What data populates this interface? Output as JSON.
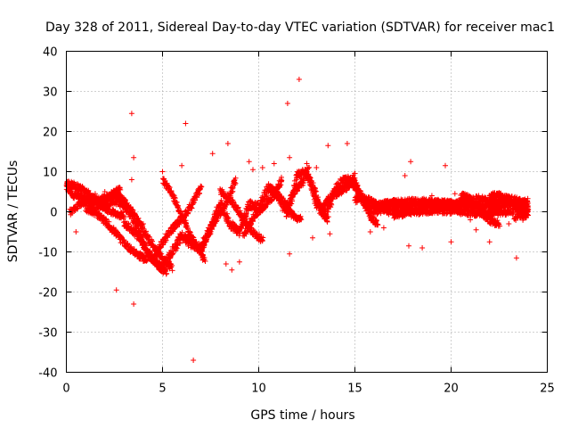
{
  "chart_data": {
    "type": "scatter",
    "title": "Day 328 of 2011, Sidereal Day-to-day VTEC variation (SDTVAR) for receiver mac1",
    "xlabel": "GPS time / hours",
    "ylabel": "SDTVAR / TECUs",
    "xlim": [
      0,
      25
    ],
    "ylim": [
      -40,
      40
    ],
    "xticks": [
      0,
      5,
      10,
      15,
      20,
      25
    ],
    "yticks": [
      -40,
      -30,
      -20,
      -10,
      0,
      10,
      20,
      30,
      40
    ],
    "grid": true,
    "marker": "+",
    "color": "#ff0000",
    "series": [
      {
        "name": "SDTVAR",
        "trend": {
          "x": [
            0,
            0.5,
            1,
            1.5,
            2,
            2.5,
            3,
            3.5,
            4,
            4.5,
            5,
            5.5,
            6,
            6.5,
            7,
            7.5,
            8,
            8.5,
            9,
            9.5,
            10,
            10.5,
            11,
            11.5,
            12,
            12.5,
            13,
            13.5,
            14,
            14.5,
            15,
            15.5,
            16,
            16.5,
            17,
            17.5,
            18,
            18.5,
            19,
            19.5,
            20,
            20.5,
            21,
            21.5,
            22,
            22.5,
            23,
            23.5,
            24
          ],
          "y": [
            6,
            4,
            3,
            1.5,
            2,
            3,
            2,
            -2,
            -8,
            -12,
            -14,
            -10,
            -6,
            -8,
            -9,
            -4,
            2,
            -3,
            -5,
            2,
            1,
            6,
            4,
            -1,
            9,
            10,
            2,
            -1,
            6,
            8,
            7,
            2,
            0,
            1,
            2,
            1,
            1.5,
            2,
            1.5,
            2,
            1.5,
            2,
            2.5,
            3,
            2,
            3,
            3,
            2.5,
            2
          ]
        },
        "bands": [
          {
            "x": [
              0.0,
              3.0
            ],
            "y_from": 7,
            "y_to": -1
          },
          {
            "x": [
              0.2,
              2.8
            ],
            "y_from": 0,
            "y_to": 6
          },
          {
            "x": [
              1.0,
              4.2
            ],
            "y_from": 1,
            "y_to": -12
          },
          {
            "x": [
              2.5,
              5.5
            ],
            "y_from": 5,
            "y_to": -14
          },
          {
            "x": [
              3.0,
              5.2
            ],
            "y_from": -3,
            "y_to": -15
          },
          {
            "x": [
              4.5,
              7.0
            ],
            "y_from": -12,
            "y_to": 6
          },
          {
            "x": [
              5.0,
              7.2
            ],
            "y_from": 8,
            "y_to": -12
          },
          {
            "x": [
              7.0,
              8.8
            ],
            "y_from": -10,
            "y_to": 8
          },
          {
            "x": [
              8.0,
              10.2
            ],
            "y_from": 5,
            "y_to": -7
          },
          {
            "x": [
              9.2,
              11.2
            ],
            "y_from": -6,
            "y_to": 8
          },
          {
            "x": [
              10.5,
              12.2
            ],
            "y_from": 6,
            "y_to": -2
          },
          {
            "x": [
              11.5,
              12.6
            ],
            "y_from": 1,
            "y_to": 11
          },
          {
            "x": [
              12.4,
              13.6
            ],
            "y_from": 10,
            "y_to": -2
          },
          {
            "x": [
              13.2,
              15.0
            ],
            "y_from": 0,
            "y_to": 9
          },
          {
            "x": [
              14.8,
              16.2
            ],
            "y_from": 7,
            "y_to": -3
          },
          {
            "x": [
              15.0,
              17.5
            ],
            "y_from": 3,
            "y_to": 0
          },
          {
            "x": [
              16.0,
              24.0
            ],
            "y_from": 1.5,
            "y_to": 2.5
          },
          {
            "x": [
              17.0,
              24.0
            ],
            "y_from": -1,
            "y_to": 1
          },
          {
            "x": [
              20.5,
              22.5
            ],
            "y_from": 4,
            "y_to": -3
          },
          {
            "x": [
              22.0,
              24.0
            ],
            "y_from": 4,
            "y_to": 1
          },
          {
            "x": [
              23.3,
              24.0
            ],
            "y_from": -2,
            "y_to": 0
          }
        ],
        "outliers": {
          "x": [
            3.4,
            3.5,
            3.4,
            2.6,
            3.5,
            6.2,
            6.6,
            8.4,
            8.6,
            9.0,
            9.7,
            11.5,
            11.6,
            12.1,
            11.6,
            13.6,
            13.7,
            14.6,
            17.6,
            17.9,
            19.7,
            20.2,
            22.0,
            23.4,
            7.6,
            8.3,
            10.8,
            0.5,
            12.5,
            12.8,
            16.5,
            21.3,
            17.8,
            20.0,
            4.0,
            5.0,
            15.8,
            19.0,
            22.8,
            6.0,
            9.5,
            10.2,
            1.5,
            2.0,
            23.0,
            18.5,
            21.0,
            13.0
          ],
          "y": [
            24.5,
            13.5,
            8,
            -19.5,
            -23,
            22,
            -37,
            17,
            -14.5,
            -12.5,
            10.5,
            27,
            -10.5,
            33,
            13.5,
            16.5,
            -5.5,
            17,
            9,
            12.5,
            11.5,
            4.5,
            -7.5,
            -11.5,
            14.5,
            -13,
            12,
            -5,
            12,
            -6.5,
            -4,
            -4.5,
            -8.5,
            -7.5,
            -3,
            10,
            -5,
            4,
            3.5,
            11.5,
            12.5,
            11,
            4.5,
            5,
            -3,
            -9,
            -2,
            11
          ]
        }
      }
    ]
  }
}
